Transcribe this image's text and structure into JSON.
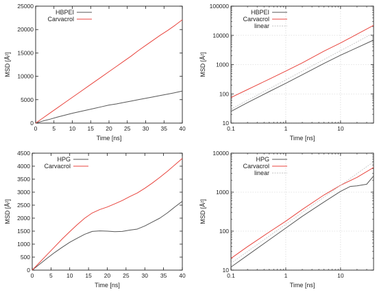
{
  "chart_data": [
    {
      "id": "top-left",
      "type": "line",
      "xscale": "linear",
      "yscale": "linear",
      "xlim": [
        0,
        40
      ],
      "ylim": [
        0,
        25000
      ],
      "xticks": [
        0,
        5,
        10,
        15,
        20,
        25,
        30,
        35,
        40
      ],
      "yticks": [
        0,
        5000,
        10000,
        15000,
        20000,
        25000
      ],
      "xtick_labels": [
        "0",
        "5",
        "10",
        "15",
        "20",
        "25",
        "30",
        "35",
        "40"
      ],
      "ytick_labels": [
        "0",
        "5000",
        "10000",
        "15000",
        "20000",
        "25000"
      ],
      "xlabel": "Time [ns]",
      "ylabel": "MSD [Å²]",
      "grid": false,
      "legend": "top-left",
      "series": [
        {
          "name": "HBPEI",
          "color": "#555555",
          "x": [
            0,
            2,
            4,
            6,
            8,
            10,
            12,
            14,
            16,
            18,
            20,
            22,
            24,
            26,
            28,
            30,
            32,
            34,
            36,
            38,
            40
          ],
          "y": [
            0,
            450,
            850,
            1300,
            1700,
            2100,
            2450,
            2800,
            3150,
            3500,
            3850,
            4100,
            4400,
            4700,
            5000,
            5300,
            5600,
            5900,
            6200,
            6500,
            6850
          ]
        },
        {
          "name": "Carvacrol",
          "color": "#e8433c",
          "x": [
            0,
            2,
            4,
            6,
            8,
            10,
            12,
            14,
            16,
            18,
            20,
            22,
            24,
            26,
            28,
            30,
            32,
            34,
            36,
            38,
            40
          ],
          "y": [
            0,
            1100,
            2200,
            3300,
            4400,
            5500,
            6600,
            7700,
            8800,
            9900,
            11000,
            12100,
            13200,
            14300,
            15500,
            16600,
            17700,
            18800,
            19800,
            20900,
            22100
          ]
        }
      ]
    },
    {
      "id": "top-right",
      "type": "line",
      "xscale": "log",
      "yscale": "log",
      "xlim": [
        0.1,
        40
      ],
      "ylim": [
        10,
        100000
      ],
      "xticks": [
        0.1,
        1,
        10
      ],
      "yticks": [
        10,
        100,
        1000,
        10000,
        100000
      ],
      "xtick_labels": [
        "0.1",
        "1",
        "10"
      ],
      "ytick_labels": [
        "10",
        "100",
        "1000",
        "10000",
        "100000"
      ],
      "xlabel": "Time [ns]",
      "ylabel": "MSD [Å²]",
      "grid": true,
      "legend": "top-left",
      "series": [
        {
          "name": "HBPEI",
          "color": "#555555",
          "x": [
            0.1,
            0.2,
            0.5,
            1,
            2,
            5,
            10,
            20,
            40
          ],
          "y": [
            25,
            50,
            120,
            230,
            450,
            1100,
            2100,
            3800,
            6900
          ]
        },
        {
          "name": "Carvacrol",
          "color": "#e8433c",
          "x": [
            0.1,
            0.2,
            0.5,
            1,
            2,
            5,
            10,
            20,
            40
          ],
          "y": [
            75,
            140,
            320,
            600,
            1150,
            2900,
            5500,
            11000,
            22100
          ]
        },
        {
          "name": "linear",
          "color": "#c0c0c0",
          "x": [
            0.1,
            40
          ],
          "y": [
            30,
            12000
          ]
        }
      ]
    },
    {
      "id": "bottom-left",
      "type": "line",
      "xscale": "linear",
      "yscale": "linear",
      "xlim": [
        0,
        40
      ],
      "ylim": [
        0,
        4500
      ],
      "xticks": [
        0,
        5,
        10,
        15,
        20,
        25,
        30,
        35,
        40
      ],
      "yticks": [
        0,
        500,
        1000,
        1500,
        2000,
        2500,
        3000,
        3500,
        4000,
        4500
      ],
      "xtick_labels": [
        "0",
        "5",
        "10",
        "15",
        "20",
        "25",
        "30",
        "35",
        "40"
      ],
      "ytick_labels": [
        "0",
        "500",
        "1000",
        "1500",
        "2000",
        "2500",
        "3000",
        "3500",
        "4000",
        "4500"
      ],
      "xlabel": "Time [ns]",
      "ylabel": "MSD [Å²]",
      "grid": false,
      "legend": "top-left",
      "series": [
        {
          "name": "HPG",
          "color": "#555555",
          "x": [
            0,
            2,
            4,
            6,
            8,
            10,
            12,
            14,
            16,
            18,
            20,
            22,
            24,
            26,
            28,
            30,
            32,
            34,
            36,
            38,
            40
          ],
          "y": [
            0,
            230,
            460,
            680,
            880,
            1070,
            1230,
            1380,
            1490,
            1510,
            1500,
            1480,
            1490,
            1540,
            1580,
            1700,
            1850,
            2000,
            2200,
            2430,
            2650
          ]
        },
        {
          "name": "Carvacrol",
          "color": "#e8433c",
          "x": [
            0,
            2,
            4,
            6,
            8,
            10,
            12,
            14,
            16,
            18,
            20,
            22,
            24,
            26,
            28,
            30,
            32,
            34,
            36,
            38,
            40
          ],
          "y": [
            0,
            300,
            600,
            900,
            1200,
            1480,
            1750,
            2000,
            2200,
            2330,
            2430,
            2550,
            2680,
            2830,
            2970,
            3150,
            3350,
            3570,
            3800,
            4050,
            4300
          ]
        }
      ]
    },
    {
      "id": "bottom-right",
      "type": "line",
      "xscale": "log",
      "yscale": "log",
      "xlim": [
        0.1,
        40
      ],
      "ylim": [
        10,
        10000
      ],
      "xticks": [
        0.1,
        1,
        10
      ],
      "yticks": [
        10,
        100,
        1000,
        10000
      ],
      "xtick_labels": [
        "0.1",
        "1",
        "10"
      ],
      "ytick_labels": [
        "10",
        "100",
        "1000",
        "10000"
      ],
      "xlabel": "Time [ns]",
      "ylabel": "MSD [Å²]",
      "grid": true,
      "legend": "top-left",
      "series": [
        {
          "name": "HPG",
          "color": "#555555",
          "x": [
            0.1,
            0.2,
            0.5,
            1,
            2,
            5,
            10,
            15,
            20,
            30,
            40
          ],
          "y": [
            12,
            24,
            60,
            120,
            240,
            560,
            1050,
            1400,
            1450,
            1600,
            2600
          ]
        },
        {
          "name": "Carvacrol",
          "color": "#e8433c",
          "x": [
            0.1,
            0.2,
            0.5,
            1,
            2,
            5,
            10,
            20,
            40
          ],
          "y": [
            20,
            40,
            95,
            180,
            360,
            850,
            1500,
            2400,
            4300
          ]
        },
        {
          "name": "linear",
          "color": "#c0c0c0",
          "x": [
            0.1,
            40
          ],
          "y": [
            15,
            6000
          ]
        }
      ]
    }
  ]
}
